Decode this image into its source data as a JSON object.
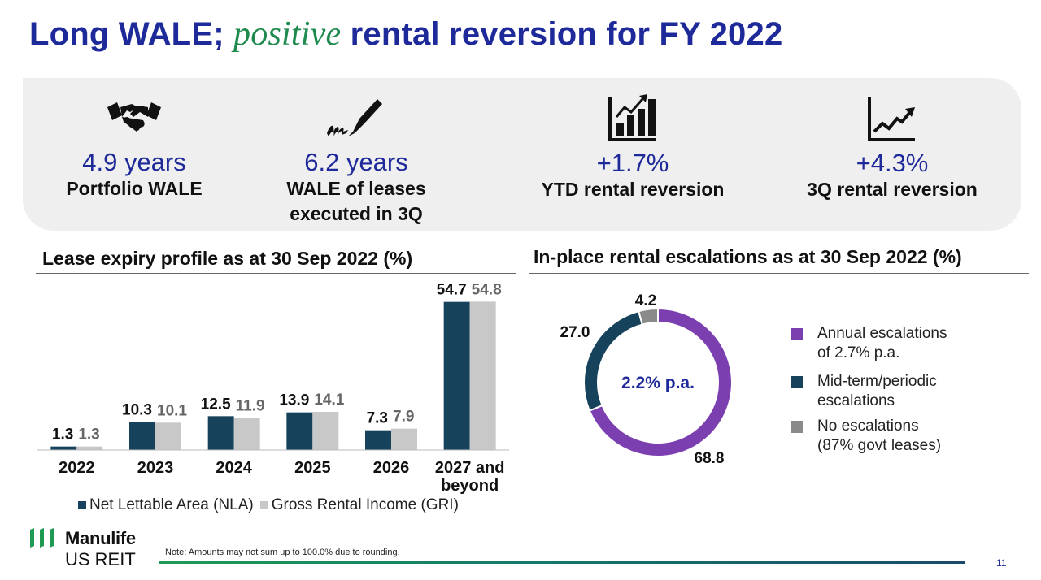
{
  "title": {
    "part1": "Long WALE;",
    "accent": "positive",
    "part2": "rental reversion for FY 2022"
  },
  "kpis": [
    {
      "icon": "handshake-icon",
      "value": "4.9 years",
      "label": "Portfolio WALE"
    },
    {
      "icon": "pen-signature-icon",
      "value": "6.2 years",
      "label": "WALE of leases executed in 3Q"
    },
    {
      "icon": "bar-chart-icon",
      "value": "+1.7%",
      "label": "YTD rental reversion"
    },
    {
      "icon": "line-chart-icon",
      "value": "+4.3%",
      "label": "3Q rental reversion"
    }
  ],
  "colors": {
    "title": "#1f2a9a",
    "accent": "#1e8a4e",
    "nla": "#16425b",
    "gri": "#c8c8c8",
    "annual": "#7b3fb0",
    "midterm": "#16425b",
    "none": "#8a8a8a"
  },
  "lease_expiry": {
    "title": "Lease expiry profile as at 30 Sep 2022 (%)",
    "legend": {
      "nla": "Net Lettable Area (NLA)",
      "gri": "Gross Rental Income (GRI)"
    }
  },
  "escalations": {
    "title": "In-place rental escalations as at 30 Sep 2022 (%)",
    "center_label": "2.2% p.a.",
    "legend": [
      {
        "key": "annual",
        "label": "Annual escalations\nof 2.7% p.a."
      },
      {
        "key": "midterm",
        "label": "Mid-term/periodic\nescalations"
      },
      {
        "key": "none",
        "label": "No escalations\n(87% govt leases)"
      }
    ]
  },
  "chart_data": [
    {
      "type": "bar",
      "title": "Lease expiry profile as at 30 Sep 2022 (%)",
      "categories": [
        "2022",
        "2023",
        "2024",
        "2025",
        "2026",
        "2027 and beyond"
      ],
      "series": [
        {
          "name": "Net Lettable Area (NLA)",
          "values": [
            1.3,
            10.3,
            12.5,
            13.9,
            7.3,
            54.7
          ],
          "labels": [
            "1.3",
            "10.3",
            "12.5",
            "13.9",
            "7.3",
            "54.7"
          ]
        },
        {
          "name": "Gross Rental Income (GRI)",
          "values": [
            1.3,
            10.1,
            11.9,
            14.1,
            7.9,
            54.8
          ],
          "labels": [
            "1.3",
            "10.1",
            "11.9",
            "14.1",
            "7.9",
            "54.8"
          ]
        }
      ],
      "ylim": [
        0,
        60
      ],
      "grid": false,
      "legend": "bottom"
    },
    {
      "type": "pie",
      "title": "In-place rental escalations as at 30 Sep 2022 (%)",
      "donut": true,
      "center_label": "2.2% p.a.",
      "slices": [
        {
          "name": "Annual escalations of 2.7% p.a.",
          "value": 68.8,
          "label": "68.8"
        },
        {
          "name": "Mid-term/periodic escalations",
          "value": 27.0,
          "label": "27.0"
        },
        {
          "name": "No escalations (87% govt leases)",
          "value": 4.2,
          "label": "4.2"
        }
      ],
      "legend": "right"
    }
  ],
  "footer": {
    "brand": "Manulife",
    "brand_sub": "US REIT",
    "note": "Note: Amounts may not sum up to 100.0% due to rounding.",
    "page": "11"
  }
}
